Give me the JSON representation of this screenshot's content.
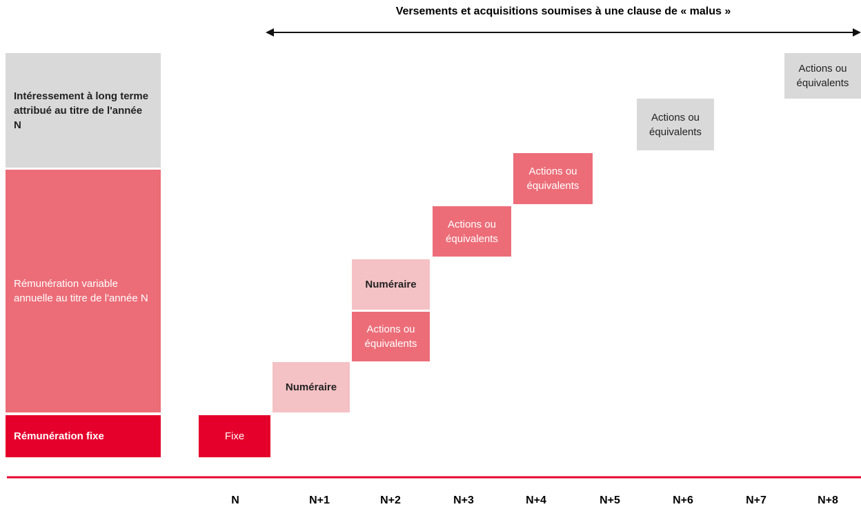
{
  "header": {
    "title": "Versements et acquisitions soumises à une clause de « malus »"
  },
  "legend": [
    "Intéressement à long terme attribué au titre de l'année N",
    "Rémunération variable annuelle au titre de l'année N",
    "Rémunération fixe"
  ],
  "boxes": [
    "Fixe",
    "Numéraire",
    "Actions ou équivalents",
    "Numéraire",
    "Actions ou équivalents",
    "Actions ou équivalents",
    "Actions ou équivalents",
    "Actions ou équivalents"
  ],
  "axis": [
    "N",
    "N+1",
    "N+2",
    "N+3",
    "N+4",
    "N+5",
    "N+6",
    "N+7",
    "N+8"
  ]
}
